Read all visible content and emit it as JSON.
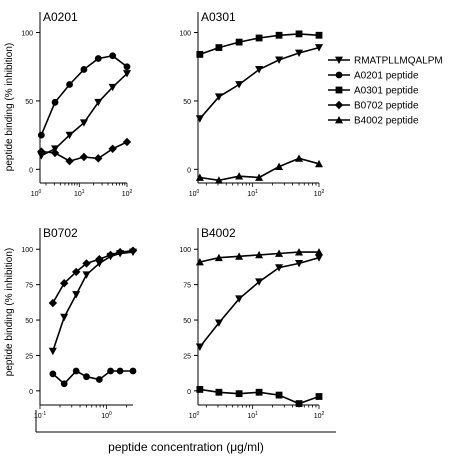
{
  "chart_data": {
    "type": "line",
    "x_axis_label": "peptide concentration (μg/ml)",
    "y_axis_label": "peptide binding (% inhibition)",
    "legend": [
      "RMATPLLMQALPM",
      "A0201 peptide",
      "A0301 peptide",
      "B0702 peptide",
      "B4002 peptide"
    ],
    "legend_markers": [
      "triangle-down",
      "circle",
      "square",
      "diamond",
      "triangle-up"
    ],
    "panels": [
      {
        "title": "A0201",
        "x_scale": "log",
        "xlim": [
          1.5,
          100
        ],
        "x_ticks": [
          {
            "v": 1,
            "base": "10",
            "exp": "0"
          },
          {
            "v": 10,
            "base": "10",
            "exp": "1"
          },
          {
            "v": 100,
            "base": "10",
            "exp": "2"
          }
        ],
        "ylim": [
          -10,
          115
        ],
        "y_ticks": [
          0,
          50,
          100
        ],
        "series": [
          {
            "name": "RMATPLLMQALPM",
            "marker": "triangle-down",
            "x": [
              1.6,
              3.1,
              6.25,
              12.5,
              25,
              50,
              100
            ],
            "y": [
              10,
              15,
              25,
              34,
              49,
              60,
              70
            ]
          },
          {
            "name": "A0201 peptide",
            "marker": "circle",
            "x": [
              1.6,
              3.1,
              6.25,
              12.5,
              25,
              50,
              100
            ],
            "y": [
              25,
              49,
              62,
              73,
              81,
              83,
              75
            ]
          },
          {
            "name": "B0702 peptide",
            "marker": "diamond",
            "x": [
              1.6,
              3.1,
              6.25,
              12.5,
              25,
              50,
              100
            ],
            "y": [
              13,
              12,
              6,
              9,
              8,
              15,
              20
            ]
          }
        ]
      },
      {
        "title": "A0301",
        "x_scale": "log",
        "xlim": [
          1.5,
          100
        ],
        "x_ticks": [
          {
            "v": 1,
            "base": "10",
            "exp": "0"
          },
          {
            "v": 10,
            "base": "10",
            "exp": "1"
          },
          {
            "v": 100,
            "base": "10",
            "exp": "2"
          }
        ],
        "ylim": [
          -10,
          115
        ],
        "y_ticks": [
          0,
          50,
          100
        ],
        "series": [
          {
            "name": "RMATPLLMQALPM",
            "marker": "triangle-down",
            "x": [
              1.6,
              3.1,
              6.25,
              12.5,
              25,
              50,
              100
            ],
            "y": [
              37,
              53,
              62,
              73,
              80,
              85,
              89
            ]
          },
          {
            "name": "A0301 peptide",
            "marker": "square",
            "x": [
              1.6,
              3.1,
              6.25,
              12.5,
              25,
              50,
              100
            ],
            "y": [
              84,
              89,
              93,
              96,
              98,
              99,
              98
            ]
          },
          {
            "name": "B4002 peptide",
            "marker": "triangle-up",
            "x": [
              1.6,
              3.1,
              6.25,
              12.5,
              25,
              50,
              100
            ],
            "y": [
              -6,
              -8,
              -5,
              -6,
              2,
              8,
              4
            ]
          }
        ]
      },
      {
        "title": "B0702",
        "x_scale": "log",
        "xlim": [
          0.1,
          2.5
        ],
        "x_ticks": [
          {
            "v": 0.1,
            "base": "10",
            "exp": "-1"
          },
          {
            "v": 1,
            "base": "10",
            "exp": "0"
          }
        ],
        "ylim": [
          -10,
          115
        ],
        "y_ticks": [
          0,
          25,
          50,
          75,
          100
        ],
        "series": [
          {
            "name": "RMATPLLMQALPM",
            "marker": "triangle-down",
            "x": [
              0.156,
              0.231,
              0.35,
              0.5,
              0.78,
              1.15,
              1.6,
              2.5
            ],
            "y": [
              28,
              52,
              68,
              82,
              90,
              95,
              97,
              98
            ]
          },
          {
            "name": "B0702 peptide",
            "marker": "diamond",
            "x": [
              0.156,
              0.231,
              0.35,
              0.5,
              0.78,
              1.15,
              1.6,
              2.5
            ],
            "y": [
              62,
              76,
              84,
              90,
              93,
              96,
              98,
              99
            ]
          },
          {
            "name": "A0201 peptide",
            "marker": "circle",
            "x": [
              0.156,
              0.231,
              0.35,
              0.5,
              0.78,
              1.15,
              1.6,
              2.5
            ],
            "y": [
              12,
              5,
              14,
              10,
              8,
              14,
              14,
              14
            ]
          }
        ]
      },
      {
        "title": "B4002",
        "x_scale": "log",
        "xlim": [
          1.5,
          100
        ],
        "x_ticks": [
          {
            "v": 1,
            "base": "10",
            "exp": "0"
          },
          {
            "v": 10,
            "base": "10",
            "exp": "1"
          },
          {
            "v": 100,
            "base": "10",
            "exp": "2"
          }
        ],
        "ylim": [
          -10,
          115
        ],
        "y_ticks": [
          0,
          25,
          50,
          75,
          100
        ],
        "series": [
          {
            "name": "RMATPLLMQALPM",
            "marker": "triangle-down",
            "x": [
              1.6,
              3.1,
              6.25,
              12.5,
              25,
              50,
              100
            ],
            "y": [
              31,
              48,
              65,
              77,
              87,
              90,
              94
            ]
          },
          {
            "name": "B4002 peptide",
            "marker": "triangle-up",
            "x": [
              1.6,
              3.1,
              6.25,
              12.5,
              25,
              50,
              100
            ],
            "y": [
              91,
              94,
              95,
              96,
              97,
              98,
              98
            ]
          },
          {
            "name": "A0301 peptide",
            "marker": "square",
            "x": [
              1.6,
              3.1,
              6.25,
              12.5,
              25,
              50,
              100
            ],
            "y": [
              1,
              -1,
              -2,
              -1,
              -3,
              -9,
              -4
            ]
          }
        ]
      }
    ]
  }
}
